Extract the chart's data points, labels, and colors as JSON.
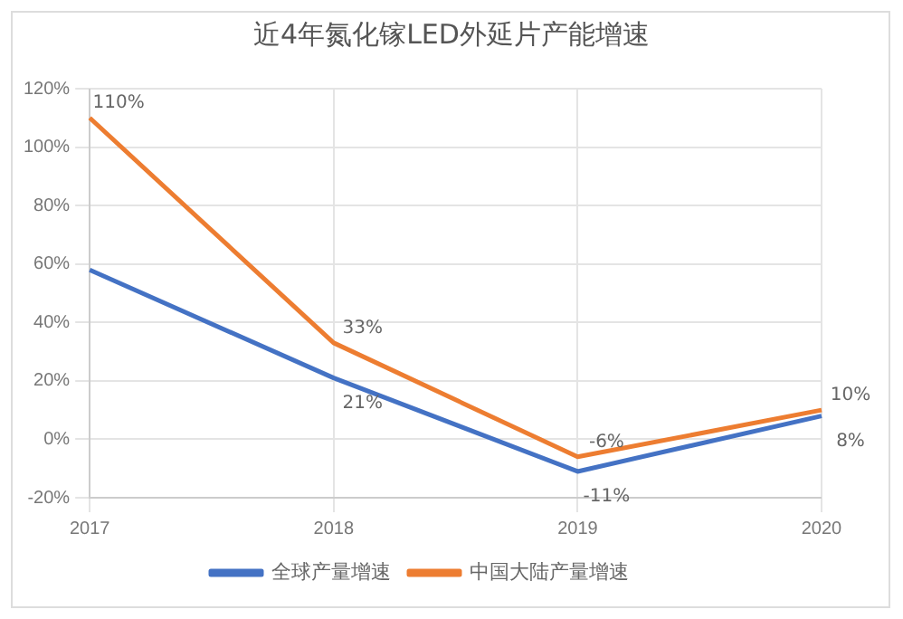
{
  "chart_data": {
    "type": "line",
    "title": "近4年氮化镓LED外延片产能增速",
    "categories": [
      "2017",
      "2018",
      "2019",
      "2020"
    ],
    "series": [
      {
        "name": "全球产量增速",
        "color": "#4472c4",
        "values": [
          58,
          21,
          -11,
          8
        ],
        "value_labels": [
          null,
          "21%",
          "-11%",
          "8%"
        ]
      },
      {
        "name": "中国大陆产量增速",
        "color": "#ed7d31",
        "values": [
          110,
          33,
          -6,
          10
        ],
        "value_labels": [
          "110%",
          "33%",
          "-6%",
          "10%"
        ]
      }
    ],
    "ylim": [
      -20,
      120
    ],
    "yticks": [
      {
        "value": -20,
        "label": "-20%"
      },
      {
        "value": 0,
        "label": "0%"
      },
      {
        "value": 20,
        "label": "20%"
      },
      {
        "value": 40,
        "label": "40%"
      },
      {
        "value": 60,
        "label": "60%"
      },
      {
        "value": 80,
        "label": "80%"
      },
      {
        "value": 100,
        "label": "100%"
      },
      {
        "value": 120,
        "label": "120%"
      }
    ],
    "grid": true,
    "legend": "bottom",
    "marker": "none",
    "line_style": "solid"
  }
}
